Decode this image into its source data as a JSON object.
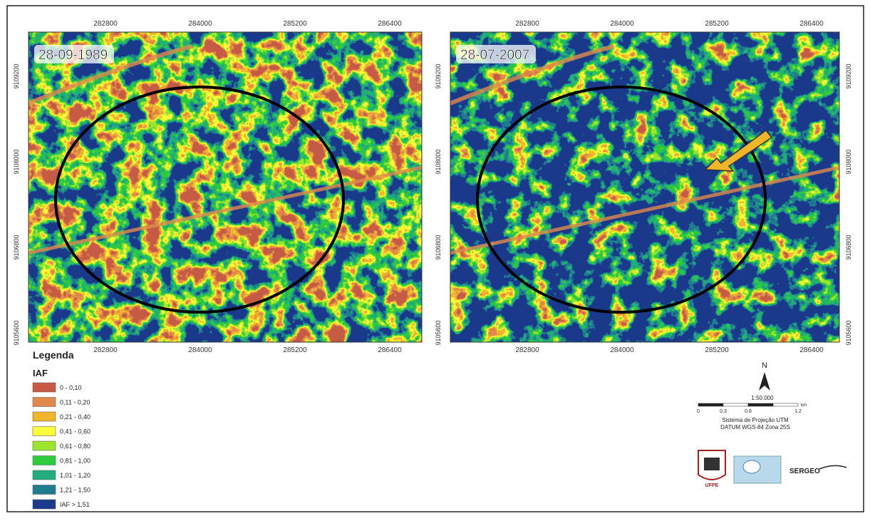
{
  "maps": [
    {
      "date": "28-09-1989"
    },
    {
      "date": "28-07-2007"
    }
  ],
  "x_coordinates": [
    "282800",
    "284000",
    "285200",
    "286400"
  ],
  "y_coordinates": [
    "9109200",
    "9108000",
    "9106800",
    "9105600"
  ],
  "legend": {
    "title": "Legenda",
    "subtitle": "IAF",
    "classes": [
      {
        "label": "0 - 0,10",
        "color": "#c65a45"
      },
      {
        "label": "0,11 - 0,20",
        "color": "#df8a4b"
      },
      {
        "label": "0,21 - 0,40",
        "color": "#f1b52c"
      },
      {
        "label": "0,41 - 0,60",
        "color": "#fbfb3a"
      },
      {
        "label": "0,61 - 0,80",
        "color": "#9be52f"
      },
      {
        "label": "0,81 - 1,00",
        "color": "#2fcb3e"
      },
      {
        "label": "1,01 - 1,20",
        "color": "#22ae7c"
      },
      {
        "label": "1,21 - 1,50",
        "color": "#207d8e"
      },
      {
        "label": "IAF > 1,51",
        "color": "#1a3a8c"
      }
    ]
  },
  "scale": {
    "north": "N",
    "ratio": "1:50.000",
    "ticks": [
      "0",
      "0.3",
      "0.6",
      "1.2"
    ],
    "unit": "km",
    "projection": "Sistema de Projeção UTM",
    "datum": "DATUM WGS-84 Zona 25S"
  },
  "logos": [
    "UFPE",
    "SERGEO"
  ]
}
